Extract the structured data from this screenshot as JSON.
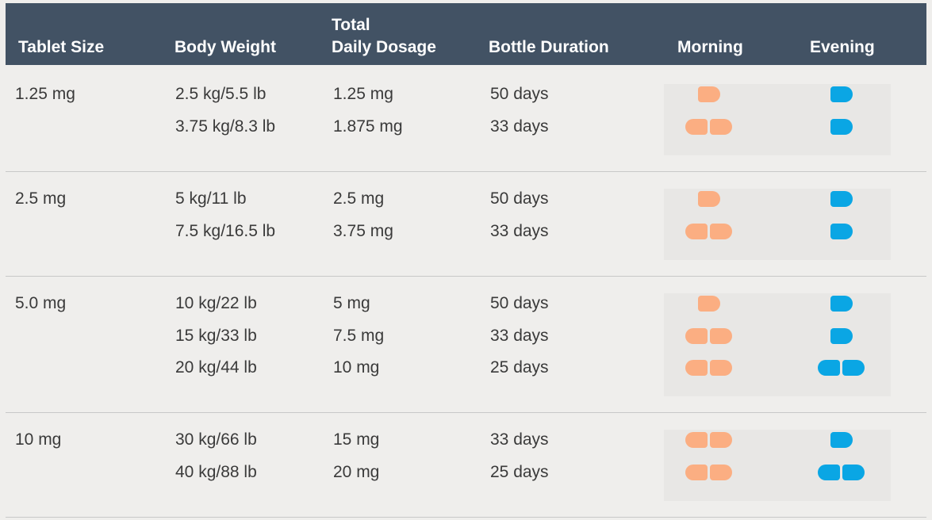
{
  "colors": {
    "header_bg": "#425264",
    "morning_pill": "#fbae82",
    "evening_pill": "#0aa6e4"
  },
  "header": {
    "tablet_size": "Tablet Size",
    "body_weight": "Body Weight",
    "total_daily_dosage_line1": "Total",
    "total_daily_dosage_line2": "Daily Dosage",
    "bottle_duration": "Bottle Duration",
    "morning": "Morning",
    "evening": "Evening"
  },
  "groups": [
    {
      "tablet_size": "1.25 mg",
      "rows": [
        {
          "body_weight": "2.5 kg/5.5 lb",
          "dosage": "1.25 mg",
          "duration": "50 days",
          "morning_tablets": 0.5,
          "evening_tablets": 0.5
        },
        {
          "body_weight": "3.75 kg/8.3 lb",
          "dosage": "1.875 mg",
          "duration": "33 days",
          "morning_tablets": 1,
          "evening_tablets": 0.5
        }
      ]
    },
    {
      "tablet_size": "2.5 mg",
      "rows": [
        {
          "body_weight": "5 kg/11 lb",
          "dosage": "2.5 mg",
          "duration": "50 days",
          "morning_tablets": 0.5,
          "evening_tablets": 0.5
        },
        {
          "body_weight": "7.5 kg/16.5 lb",
          "dosage": "3.75 mg",
          "duration": "33 days",
          "morning_tablets": 1,
          "evening_tablets": 0.5
        }
      ]
    },
    {
      "tablet_size": "5.0 mg",
      "rows": [
        {
          "body_weight": "10 kg/22 lb",
          "dosage": "5 mg",
          "duration": "50 days",
          "morning_tablets": 0.5,
          "evening_tablets": 0.5
        },
        {
          "body_weight": "15 kg/33 lb",
          "dosage": "7.5 mg",
          "duration": "33 days",
          "morning_tablets": 1,
          "evening_tablets": 0.5
        },
        {
          "body_weight": "20 kg/44 lb",
          "dosage": "10 mg",
          "duration": "25 days",
          "morning_tablets": 1,
          "evening_tablets": 1
        }
      ]
    },
    {
      "tablet_size": "10 mg",
      "rows": [
        {
          "body_weight": "30 kg/66 lb",
          "dosage": "15 mg",
          "duration": "33 days",
          "morning_tablets": 1,
          "evening_tablets": 0.5
        },
        {
          "body_weight": "40 kg/88 lb",
          "dosage": "20 mg",
          "duration": "25 days",
          "morning_tablets": 1,
          "evening_tablets": 1
        }
      ]
    }
  ]
}
